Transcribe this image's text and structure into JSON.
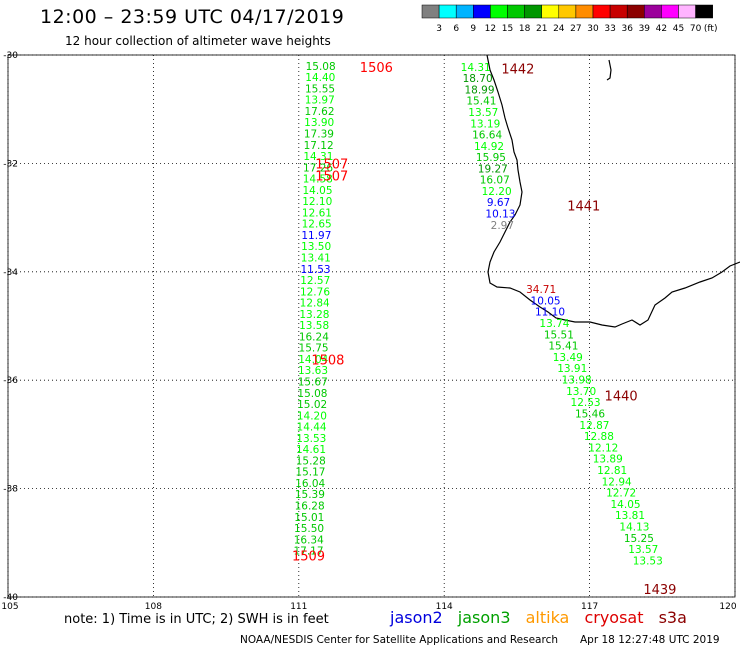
{
  "title": "12:00 – 23:59 UTC 04/17/2019",
  "subtitle": "12 hour collection of altimeter wave heights",
  "scale": {
    "colors": [
      "#808080",
      "#00ffff",
      "#00b4ff",
      "#0000ff",
      "#00ff00",
      "#00c800",
      "#009600",
      "#ffff00",
      "#ffc800",
      "#ff8c00",
      "#ff0000",
      "#c80000",
      "#8b0000",
      "#9b009b",
      "#ff00ff",
      "#ffb4ff",
      "#000000"
    ],
    "labels": [
      "3",
      "6",
      "9",
      "12",
      "15",
      "18",
      "21",
      "24",
      "27",
      "30",
      "33",
      "36",
      "39",
      "42",
      "45",
      "70"
    ],
    "unit": "(ft)"
  },
  "axes": {
    "lat_ticks": [
      "-30",
      "-32",
      "-34",
      "-36",
      "-38",
      "-40"
    ],
    "lon_ticks": [
      "105",
      "108",
      "111",
      "114",
      "117",
      "120"
    ]
  },
  "pass_labels": [
    {
      "text": "1506",
      "color": "#ff0000",
      "lon": 112.6,
      "lat": -30.22
    },
    {
      "text": "1442",
      "color": "#8b0000",
      "lon": 115.52,
      "lat": -30.25
    },
    {
      "text": "1507",
      "color": "#ff0000",
      "lon": 111.68,
      "lat": -32.0
    },
    {
      "text": "1507",
      "color": "#ff0000",
      "lon": 111.68,
      "lat": -32.22
    },
    {
      "text": "1441",
      "color": "#8b0000",
      "lon": 116.88,
      "lat": -32.78
    },
    {
      "text": "1508",
      "color": "#ff0000",
      "lon": 111.6,
      "lat": -35.62
    },
    {
      "text": "1440",
      "color": "#8b0000",
      "lon": 117.65,
      "lat": -36.28
    },
    {
      "text": "1509",
      "color": "#ff0000",
      "lon": 111.2,
      "lat": -39.23
    },
    {
      "text": "1439",
      "color": "#8b0000",
      "lon": 118.45,
      "lat": -39.85
    }
  ],
  "tracks": [
    {
      "lon_start": 111.45,
      "lon_end": 111.2,
      "lat_start": -30.2,
      "lat_step": -0.208,
      "values": [
        "15.08",
        "14.40",
        "15.55",
        "13.97",
        "17.62",
        "13.90",
        "17.39",
        "17.12",
        "14.31",
        "17.26",
        "14.58",
        "14.05",
        "12.10",
        "12.61",
        "12.65",
        "11.97",
        "13.50",
        "13.41",
        "11.53",
        "12.57",
        "12.76",
        "12.84",
        "13.28",
        "13.58",
        "16.24",
        "15.75",
        "14.04",
        "13.63",
        "15.67",
        "15.08",
        "15.02",
        "14.20",
        "14.44",
        "13.53",
        "14.61",
        "15.28",
        "15.17",
        "16.04",
        "15.39",
        "16.28",
        "15.01",
        "15.50",
        "16.34",
        "17.17"
      ]
    },
    {
      "lon_start": 114.65,
      "lon_end": 115.2,
      "lat_start": -30.22,
      "lat_step": -0.208,
      "values": [
        "14.31",
        "18.70",
        "18.99",
        "15.41",
        "13.57",
        "13.19",
        "16.64",
        "14.92",
        "15.95",
        "19.27",
        "16.07",
        "12.20",
        "9.67",
        "10.13",
        "2.97"
      ]
    },
    {
      "lon_start": 116.0,
      "lon_end": 118.2,
      "lat_start": -34.32,
      "lat_step": -0.2085,
      "values": [
        "34.71",
        "10.05",
        "11.10",
        "13.74",
        "15.51",
        "15.41",
        "13.49",
        "13.91",
        "13.98",
        "13.70",
        "12.53",
        "15.46",
        "12.87",
        "12.88",
        "12.12",
        "13.89",
        "12.81",
        "12.94",
        "12.72",
        "14.05",
        "13.81",
        "14.13",
        "15.25",
        "13.57",
        "13.53"
      ]
    }
  ],
  "note": "note:  1) Time is in UTC;  2) SWH is in feet",
  "legend": [
    {
      "name": "jason2",
      "color": "#0000dd"
    },
    {
      "name": "jason3",
      "color": "#00a000"
    },
    {
      "name": "altika",
      "color": "#ff9900"
    },
    {
      "name": "cryosat",
      "color": "#dd0000"
    },
    {
      "name": "s3a",
      "color": "#8b0000"
    }
  ],
  "credit": "NOAA/NESDIS Center for Satellite Applications and Research",
  "timestamp": "Apr 18 12:27:48 UTC 2019"
}
